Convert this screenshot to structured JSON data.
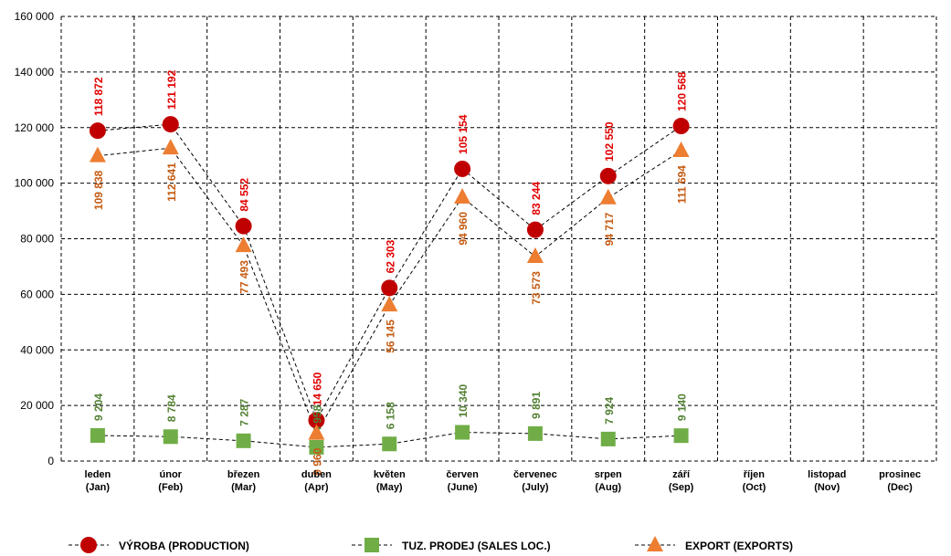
{
  "chart_data": {
    "type": "line",
    "categories": [
      "leden\n(Jan)",
      "únor\n(Feb)",
      "březen\n(Mar)",
      "duben\n(Apr)",
      "květen\n(May)",
      "červen\n(June)",
      "červenec\n(July)",
      "srpen\n(Aug)",
      "září\n(Sep)",
      "říjen\n(Oct)",
      "listopad\n(Nov)",
      "prosinec\n(Dec)"
    ],
    "series": [
      {
        "name": "VÝROBA (PRODUCTION)",
        "color": "#c00000",
        "label_color": "#e00000",
        "marker": "circle",
        "label_position": "above",
        "values": [
          118872,
          121192,
          84552,
          14650,
          62303,
          105154,
          83244,
          102550,
          120568,
          null,
          null,
          null
        ],
        "value_labels": [
          "118 872",
          "121 192",
          "84 552",
          "14 650",
          "62 303",
          "105 154",
          "83 244",
          "102 550",
          "120 568",
          null,
          null,
          null
        ]
      },
      {
        "name": "TUZ. PRODEJ (SALES LOC.)",
        "color": "#70ad47",
        "label_color": "#548235",
        "marker": "square",
        "label_position": "above",
        "values": [
          9204,
          8784,
          7287,
          4958,
          6158,
          10340,
          9891,
          7924,
          9140,
          null,
          null,
          null
        ],
        "value_labels": [
          "9 204",
          "8 784",
          "7 287",
          "4 958",
          "6 158",
          "10 340",
          "9 891",
          "7 924",
          "9 140",
          null,
          null,
          null
        ]
      },
      {
        "name": "EXPORT (EXPORTS)",
        "color": "#ed7d31",
        "label_color": "#c55a11",
        "marker": "triangle",
        "label_position": "below",
        "values": [
          109838,
          112641,
          77493,
          9960,
          56145,
          94960,
          73573,
          94717,
          111694,
          null,
          null,
          null
        ],
        "value_labels": [
          "109 838",
          "112 641",
          "77 493",
          "9 960",
          "56 145",
          "94 960",
          "73 573",
          "94 717",
          "111 694",
          null,
          null,
          null
        ]
      }
    ],
    "ylim": [
      0,
      160000
    ],
    "yticks": [
      0,
      {
        "value": 20000,
        "label": "20 000"
      },
      {
        "value": 40000,
        "label": "40 000"
      },
      {
        "value": 60000,
        "label": "60 000"
      },
      {
        "value": 80000,
        "label": "80 000"
      },
      {
        "value": 100000,
        "label": "100 000"
      },
      {
        "value": 120000,
        "label": "120 000"
      },
      {
        "value": 140000,
        "label": "140 000"
      },
      {
        "value": 160000,
        "label": "160 000"
      }
    ],
    "grid": true,
    "legend": "bottom"
  }
}
